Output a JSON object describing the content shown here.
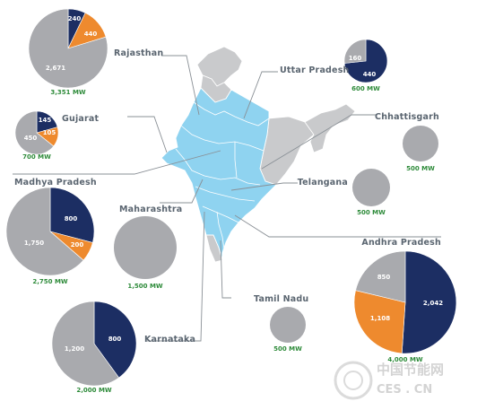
{
  "chart_data": [
    {
      "type": "pie",
      "region": "Rajasthan",
      "total": "3,351 MW",
      "slices": [
        {
          "label": "240",
          "value": 240,
          "color": "#1c2e63"
        },
        {
          "label": "440",
          "value": 440,
          "color": "#ee8a2e"
        },
        {
          "label": "2,671",
          "value": 2671,
          "color": "#a9aaae"
        }
      ]
    },
    {
      "type": "pie",
      "region": "Uttar Pradesh",
      "total": "600 MW",
      "slices": [
        {
          "label": "440",
          "value": 440,
          "color": "#1c2e63"
        },
        {
          "label": "160",
          "value": 160,
          "color": "#a9aaae"
        }
      ]
    },
    {
      "type": "pie",
      "region": "Gujarat",
      "total": "700 MW",
      "slices": [
        {
          "label": "145",
          "value": 145,
          "color": "#1c2e63"
        },
        {
          "label": "105",
          "value": 105,
          "color": "#ee8a2e"
        },
        {
          "label": "450",
          "value": 450,
          "color": "#a9aaae"
        }
      ]
    },
    {
      "type": "pie",
      "region": "Chhattisgarh",
      "total": "500 MW",
      "slices": [
        {
          "label": "",
          "value": 500,
          "color": "#a9aaae"
        }
      ]
    },
    {
      "type": "pie",
      "region": "Madhya Pradesh",
      "total": "2,750 MW",
      "slices": [
        {
          "label": "800",
          "value": 800,
          "color": "#1c2e63"
        },
        {
          "label": "200",
          "value": 200,
          "color": "#ee8a2e"
        },
        {
          "label": "1,750",
          "value": 1750,
          "color": "#a9aaae"
        }
      ]
    },
    {
      "type": "pie",
      "region": "Maharashtra",
      "total": "1,500 MW",
      "slices": [
        {
          "label": "",
          "value": 1500,
          "color": "#a9aaae"
        }
      ]
    },
    {
      "type": "pie",
      "region": "Telangana",
      "total": "500 MW",
      "slices": [
        {
          "label": "",
          "value": 500,
          "color": "#a9aaae"
        }
      ]
    },
    {
      "type": "pie",
      "region": "Andhra Pradesh",
      "total": "4,000 MW",
      "slices": [
        {
          "label": "2,042",
          "value": 2042,
          "color": "#1c2e63"
        },
        {
          "label": "1,108",
          "value": 1108,
          "color": "#ee8a2e"
        },
        {
          "label": "850",
          "value": 850,
          "color": "#a9aaae"
        }
      ]
    },
    {
      "type": "pie",
      "region": "Tamil Nadu",
      "total": "500 MW",
      "slices": [
        {
          "label": "",
          "value": 500,
          "color": "#a9aaae"
        }
      ]
    },
    {
      "type": "pie",
      "region": "Karnataka",
      "total": "2,000 MW",
      "slices": [
        {
          "label": "800",
          "value": 800,
          "color": "#1c2e63"
        },
        {
          "label": "1,200",
          "value": 1200,
          "color": "#a9aaae"
        }
      ]
    }
  ],
  "colors": {
    "map_highlight": "#8fd3f0",
    "map_other": "#c9cacc",
    "leader_line": "#8a9096",
    "label_text": "#5a6570",
    "total_text": "#2e8b3a"
  },
  "watermark": {
    "line1": "中国节能网",
    "line2": "CES . CN"
  }
}
